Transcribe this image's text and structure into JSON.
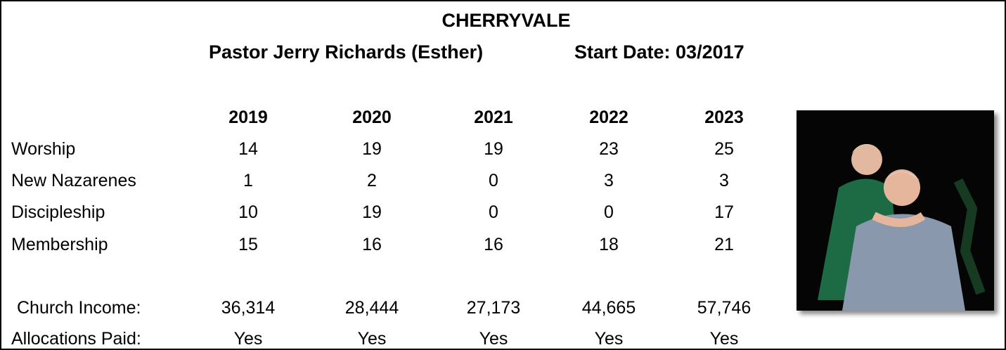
{
  "header": {
    "title": "CHERRYVALE",
    "pastor": "Pastor Jerry Richards (Esther)",
    "start_date": "Start Date: 03/2017"
  },
  "table": {
    "columns": [
      2019,
      2020,
      2021,
      2022,
      2023
    ],
    "rows": [
      {
        "label": "Worship",
        "values": [
          14,
          19,
          19,
          23,
          25
        ]
      },
      {
        "label": "New Nazarenes",
        "values": [
          1,
          2,
          0,
          3,
          3
        ]
      },
      {
        "label": "Discipleship",
        "values": [
          10,
          19,
          0,
          0,
          17
        ]
      },
      {
        "label": "Membership",
        "values": [
          15,
          16,
          16,
          18,
          21
        ]
      }
    ]
  },
  "finances": {
    "rows": [
      {
        "label": "Church Income:",
        "values": [
          "36,314",
          "28,444",
          "27,173",
          "44,665",
          "57,746"
        ]
      },
      {
        "label": "Allocations Paid:",
        "values": [
          "Yes",
          "Yes",
          "Yes",
          "Yes",
          "Yes"
        ]
      }
    ]
  }
}
